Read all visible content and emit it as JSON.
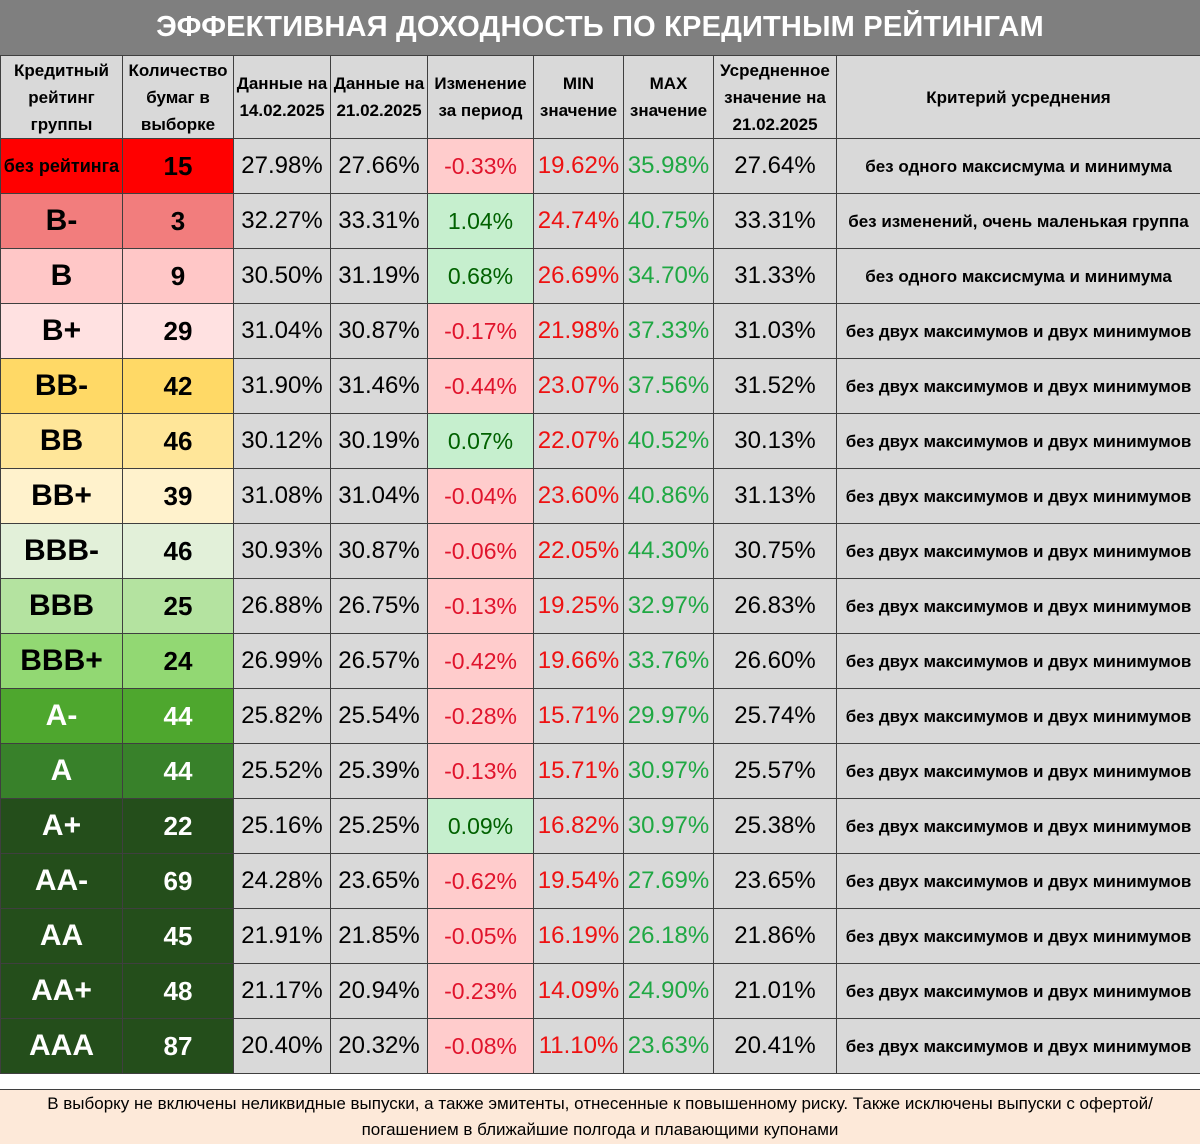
{
  "chart_data": {
    "type": "table",
    "title": "ЭФФЕКТИВНАЯ ДОХОДНОСТЬ ПО КРЕДИТНЫМ РЕЙТИНГАМ",
    "columns": [
      "Кредитный рейтинг группы",
      "Количество бумаг в выборке",
      "Данные на 14.02.2025",
      "Данные на 21.02.2025",
      "Изменение за период",
      "MIN значение",
      "MAX значение",
      "Усредненное значение на 21.02.2025",
      "Критерий усреднения"
    ],
    "rows": [
      {
        "rating": "без рейтинга",
        "count": "15",
        "d1": "27.98%",
        "d2": "27.66%",
        "change": "-0.33%",
        "min": "19.62%",
        "max": "35.98%",
        "avg": "27.64%",
        "criterion": "без одного максисмума и минимума",
        "color": "#ff0000"
      },
      {
        "rating": "B-",
        "count": "3",
        "d1": "32.27%",
        "d2": "33.31%",
        "change": "1.04%",
        "min": "24.74%",
        "max": "40.75%",
        "avg": "33.31%",
        "criterion": "без изменений, очень маленькая группа",
        "color": "#f27d7d"
      },
      {
        "rating": "B",
        "count": "9",
        "d1": "30.50%",
        "d2": "31.19%",
        "change": "0.68%",
        "min": "26.69%",
        "max": "34.70%",
        "avg": "31.33%",
        "criterion": "без одного максисмума и минимума",
        "color": "#ffc7c7"
      },
      {
        "rating": "B+",
        "count": "29",
        "d1": "31.04%",
        "d2": "30.87%",
        "change": "-0.17%",
        "min": "21.98%",
        "max": "37.33%",
        "avg": "31.03%",
        "criterion": "без двух максимумов и двух минимумов",
        "color": "#ffe1e1"
      },
      {
        "rating": "BB-",
        "count": "42",
        "d1": "31.90%",
        "d2": "31.46%",
        "change": "-0.44%",
        "min": "23.07%",
        "max": "37.56%",
        "avg": "31.52%",
        "criterion": "без двух максимумов и двух минимумов",
        "color": "#ffd966"
      },
      {
        "rating": "BB",
        "count": "46",
        "d1": "30.12%",
        "d2": "30.19%",
        "change": "0.07%",
        "min": "22.07%",
        "max": "40.52%",
        "avg": "30.13%",
        "criterion": "без двух максимумов и двух минимумов",
        "color": "#ffe699"
      },
      {
        "rating": "BB+",
        "count": "39",
        "d1": "31.08%",
        "d2": "31.04%",
        "change": "-0.04%",
        "min": "23.60%",
        "max": "40.86%",
        "avg": "31.13%",
        "criterion": "без двух максимумов и двух минимумов",
        "color": "#fff2cc"
      },
      {
        "rating": "BBB-",
        "count": "46",
        "d1": "30.93%",
        "d2": "30.87%",
        "change": "-0.06%",
        "min": "22.05%",
        "max": "44.30%",
        "avg": "30.75%",
        "criterion": "без двух максимумов и двух минимумов",
        "color": "#e2f0d9"
      },
      {
        "rating": "BBB",
        "count": "25",
        "d1": "26.88%",
        "d2": "26.75%",
        "change": "-0.13%",
        "min": "19.25%",
        "max": "32.97%",
        "avg": "26.83%",
        "criterion": "без двух максимумов и двух минимумов",
        "color": "#b4e3a0"
      },
      {
        "rating": "BBB+",
        "count": "24",
        "d1": "26.99%",
        "d2": "26.57%",
        "change": "-0.42%",
        "min": "19.66%",
        "max": "33.76%",
        "avg": "26.60%",
        "criterion": "без двух максимумов и двух минимумов",
        "color": "#92d873"
      },
      {
        "rating": "A-",
        "count": "44",
        "d1": "25.82%",
        "d2": "25.54%",
        "change": "-0.28%",
        "min": "15.71%",
        "max": "29.97%",
        "avg": "25.74%",
        "criterion": "без двух максимумов и двух минимумов",
        "color": "#4ea72e"
      },
      {
        "rating": "A",
        "count": "44",
        "d1": "25.52%",
        "d2": "25.39%",
        "change": "-0.13%",
        "min": "15.71%",
        "max": "30.97%",
        "avg": "25.57%",
        "criterion": "без двух максимумов и двух минимумов",
        "color": "#38812a"
      },
      {
        "rating": "A+",
        "count": "22",
        "d1": "25.16%",
        "d2": "25.25%",
        "change": "0.09%",
        "min": "16.82%",
        "max": "30.97%",
        "avg": "25.38%",
        "criterion": "без двух максимумов и двух минимумов",
        "color": "#244e1b"
      },
      {
        "rating": "AA-",
        "count": "69",
        "d1": "24.28%",
        "d2": "23.65%",
        "change": "-0.62%",
        "min": "19.54%",
        "max": "27.69%",
        "avg": "23.65%",
        "criterion": "без двух максимумов и двух минимумов",
        "color": "#244e1b"
      },
      {
        "rating": "AA",
        "count": "45",
        "d1": "21.91%",
        "d2": "21.85%",
        "change": "-0.05%",
        "min": "16.19%",
        "max": "26.18%",
        "avg": "21.86%",
        "criterion": "без двух максимумов и двух минимумов",
        "color": "#244e1b"
      },
      {
        "rating": "AA+",
        "count": "48",
        "d1": "21.17%",
        "d2": "20.94%",
        "change": "-0.23%",
        "min": "14.09%",
        "max": "24.90%",
        "avg": "21.01%",
        "criterion": "без двух максимумов и двух минимумов",
        "color": "#244e1b"
      },
      {
        "rating": "AAA",
        "count": "87",
        "d1": "20.40%",
        "d2": "20.32%",
        "change": "-0.08%",
        "min": "11.10%",
        "max": "23.63%",
        "avg": "20.41%",
        "criterion": "без двух максимумов и двух минимумов",
        "color": "#244e1b"
      }
    ],
    "footnote": "В выборку не включены неликвидные выпуски, а также эмитенты, отнесенные к повышенному риску. Также исключены выпуски с офертой/погашением в ближайшие полгода и плавающими купонами"
  },
  "colors": {
    "header_bg": "#d9d9d9",
    "title_bg": "#7f7f7f",
    "negative_bg": "#ffcccc",
    "negative_text": "#e0142c",
    "positive_bg": "#c6efce",
    "positive_text": "#006100",
    "min_text": "#ee1111",
    "max_text": "#1fa843",
    "footnote_bg": "#fde9d9"
  }
}
